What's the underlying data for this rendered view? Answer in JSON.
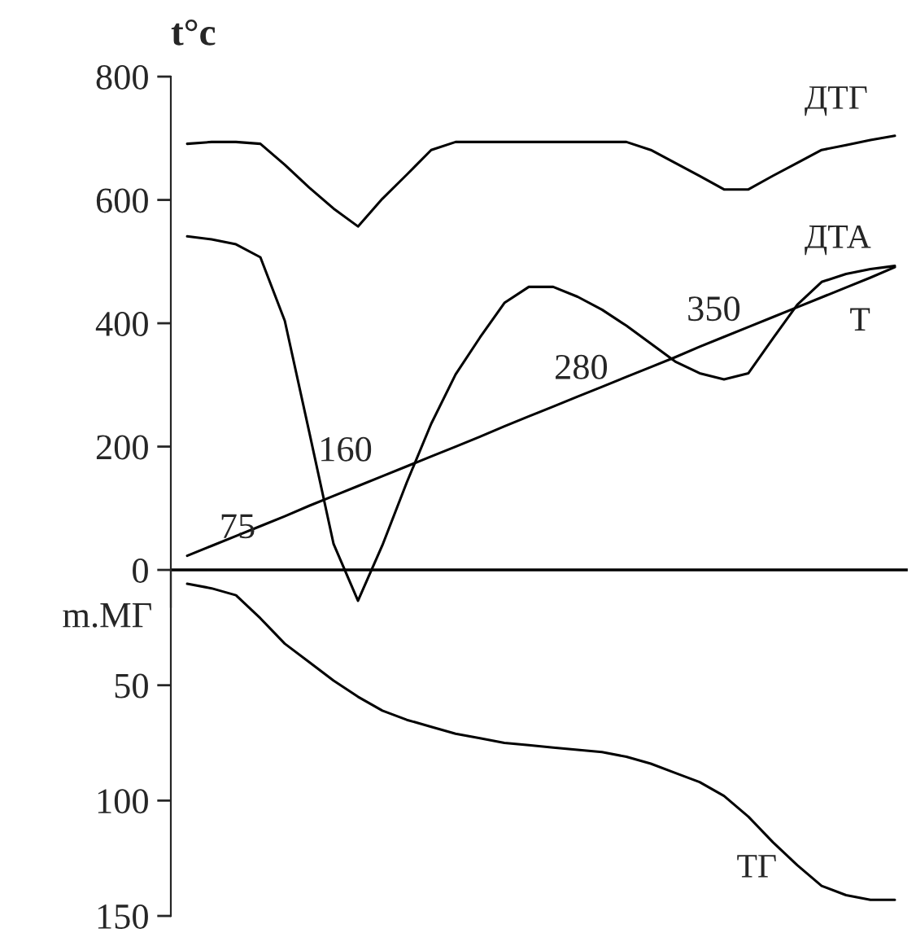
{
  "chart_data": [
    {
      "type": "line",
      "ylabel": "t°c",
      "categories": [
        null,
        null,
        null,
        null,
        null,
        null,
        null,
        null,
        null,
        null,
        null,
        null,
        null,
        null,
        null,
        null,
        null,
        null,
        null,
        null,
        null,
        null,
        null,
        null,
        null,
        null,
        null,
        null,
        null,
        null
      ],
      "series": [
        {
          "name": "ДТГ",
          "color": "#000000",
          "values": [
            691,
            694,
            694,
            691,
            657,
            620,
            586,
            557,
            602,
            641,
            681,
            694,
            694,
            694,
            694,
            694,
            694,
            694,
            694,
            681,
            660,
            639,
            617,
            617,
            639,
            660,
            681,
            689,
            697,
            704
          ]
        },
        {
          "name": "ДТА",
          "color": "#000000",
          "values": [
            541,
            536,
            528,
            507,
            404,
            224,
            42,
            -50,
            40,
            142,
            237,
            317,
            377,
            433,
            459,
            459,
            443,
            422,
            396,
            367,
            338,
            319,
            309,
            319,
            375,
            430,
            467,
            480,
            488,
            493
          ]
        },
        {
          "name": "Т",
          "color": "#000000",
          "values": [
            23,
            39,
            55,
            71,
            87,
            104,
            120,
            136,
            152,
            168,
            184,
            200,
            216,
            233,
            249,
            265,
            281,
            297,
            313,
            329,
            345,
            362,
            378,
            394,
            410,
            426,
            442,
            458,
            474,
            491
          ]
        }
      ],
      "ylim": [
        -60,
        800
      ],
      "yticks": [
        0,
        200,
        400,
        600,
        800
      ],
      "ref_lines": [
        {
          "axis": "y",
          "value": 0,
          "color": "#000000"
        }
      ],
      "annotations": [
        "75",
        "160",
        "280",
        "350"
      ],
      "tick_labels": "y",
      "grid": false,
      "legend": false,
      "marker": "none",
      "line_style": "solid"
    },
    {
      "type": "line",
      "ylabel": "m.МГ",
      "categories": [
        null,
        null,
        null,
        null,
        null,
        null,
        null,
        null,
        null,
        null,
        null,
        null,
        null,
        null,
        null,
        null,
        null,
        null,
        null,
        null,
        null,
        null,
        null,
        null,
        null,
        null,
        null,
        null,
        null,
        null
      ],
      "series": [
        {
          "name": "ТГ",
          "color": "#000000",
          "values": [
            6,
            8,
            11,
            21,
            32,
            40,
            48,
            55,
            61,
            65,
            68,
            71,
            73,
            75,
            76,
            77,
            78,
            79,
            81,
            84,
            88,
            92,
            98,
            107,
            118,
            128,
            137,
            141,
            143,
            143
          ]
        }
      ],
      "ylim": [
        150,
        0
      ],
      "yticks": [
        50,
        100,
        150
      ],
      "tick_labels": "y",
      "grid": false,
      "legend": false,
      "marker": "none",
      "line_style": "solid"
    }
  ]
}
